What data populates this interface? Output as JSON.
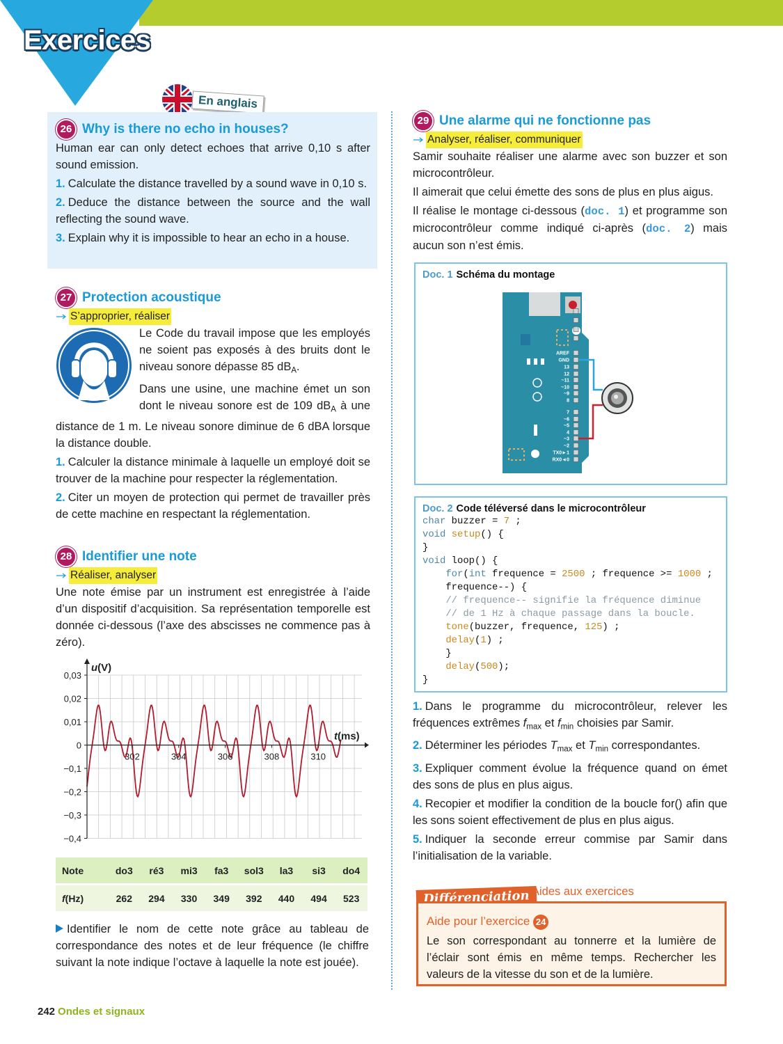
{
  "header": {
    "title": "Exercices",
    "badge": "En anglais"
  },
  "ex26": {
    "number": "26",
    "title": "Why is there no echo in houses?",
    "paragraphs": [
      [
        "Human ear can only detect echoes that arrive 0,10 s after sound emission."
      ],
      [
        {
          "num": "1."
        },
        "Calculate the distance travelled by a sound wave in 0,10 s."
      ],
      [
        {
          "num": "2."
        },
        "Deduce the distance between the source and the wall reflecting the sound wave."
      ],
      [
        {
          "num": "3."
        },
        "Explain why it is impossible to hear an echo in a house."
      ]
    ]
  },
  "ex27": {
    "number": "27",
    "title": "Protection acoustique",
    "skills": "S’approprier, réaliser",
    "paragraphs": [
      [
        "Le Code du travail impose que les employés ne soient pas exposés à des bruits dont le niveau sonore dépasse 85 dB",
        {
          "sub": "A"
        },
        "."
      ],
      [
        "Dans une usine, une machine émet un son dont le niveau sonore est de 109 dB",
        {
          "sub": "A"
        },
        " à une distance de 1 m. Le niveau sonore diminue de 6 dBA lorsque la distance double."
      ],
      [
        {
          "num": "1."
        },
        "Calculer la distance minimale à laquelle un employé doit se trouver de la machine pour respecter la réglementation."
      ],
      [
        {
          "num": "2."
        },
        "Citer un moyen de protection qui permet de travailler près de cette machine en respectant la réglementation."
      ]
    ]
  },
  "ex28": {
    "number": "28",
    "title": "Identifier une note",
    "skills": "Réaliser, analyser",
    "paragraphs": [
      [
        "Une note émise par un instrument est enregistrée à l’aide d’un dispositif d’acquisition. Sa représentation temporelle est donnée ci-dessous (l’axe des abscisses ne commence pas à zéro)."
      ]
    ],
    "graph": {
      "y_axis_label": [
        {
          "i": "u"
        },
        "(V)"
      ],
      "x_axis_label": [
        {
          "i": "t"
        },
        "(ms)"
      ],
      "yticks": [
        "0,03",
        "0,02",
        "0,01",
        "0",
        "−0,1",
        "−0,2",
        "−0,3",
        "−0,4"
      ],
      "xticks": [
        302,
        304,
        306,
        308,
        310
      ]
    },
    "table": {
      "rows": [
        {
          "label": [
            "Note"
          ],
          "cells": [
            "do3",
            "ré3",
            "mi3",
            "fa3",
            "sol3",
            "la3",
            "si3",
            "do4"
          ]
        },
        {
          "label": [
            {
              "i": "f"
            },
            "(Hz)"
          ],
          "cells": [
            262,
            294,
            330,
            349,
            392,
            440,
            494,
            523
          ]
        }
      ]
    },
    "closing": [
      [
        "Identifier le nom de cette note grâce au tableau de correspondance des notes et de leur fréquence (le chiffre suivant la note indique l’octave à laquelle la note est jouée)."
      ]
    ]
  },
  "ex29": {
    "number": "29",
    "title": "Une alarme qui ne fonctionne pas",
    "skills": "Analyser, réaliser, communiquer",
    "paragraphs": [
      [
        "Samir souhaite réaliser une alarme avec son buzzer et son microcontrôleur."
      ],
      [
        "Il aimerait que celui émette des sons de plus en plus aigus."
      ],
      [
        "Il réalise le montage ci-dessous (",
        {
          "ref": "doc. 1"
        },
        ") et programme son microcontrôleur comme indiqué ci-après (",
        {
          "ref": "doc. 2"
        },
        ") mais aucun son n’est émis."
      ]
    ],
    "doc1": {
      "label": "Doc. 1",
      "title": "Schéma du montage",
      "pins": [
        "AREF",
        "GND",
        "13",
        "12",
        "~11",
        "~10",
        "~9",
        "8",
        "7",
        "~6",
        "~5",
        "4",
        "~3",
        "~2",
        "TX0►1",
        "RX0◄0"
      ]
    },
    "doc2": {
      "label": "Doc. 2",
      "title": "Code téléversé dans le microcontrôleur",
      "code": [
        [
          {
            "kw": "char"
          },
          " buzzer = ",
          {
            "n": "7"
          },
          " ;"
        ],
        [
          {
            "kw": "void"
          },
          " ",
          {
            "fn": "setup"
          },
          "() {"
        ],
        [
          "}"
        ],
        [
          {
            "kw": "void"
          },
          " loop() {"
        ],
        [
          "    ",
          {
            "kw": "for"
          },
          "(",
          {
            "kw": "int"
          },
          " frequence = ",
          {
            "n": "2500"
          },
          " ; frequence >= ",
          {
            "n": "1000"
          },
          " ;"
        ],
        [
          "    frequence--) {"
        ],
        [
          "    ",
          {
            "cm": "// frequence-- signifie la fréquence diminue"
          }
        ],
        [
          "    ",
          {
            "cm": "// de 1 Hz à chaque passage dans la boucle."
          }
        ],
        [
          "    ",
          {
            "fn": "tone"
          },
          "(buzzer, frequence, ",
          {
            "n": "125"
          },
          ") ;"
        ],
        [
          "    ",
          {
            "fn": "delay"
          },
          "(",
          {
            "n": "1"
          },
          ") ;"
        ],
        [
          "    }"
        ],
        [
          "    ",
          {
            "fn": "delay"
          },
          "(",
          {
            "n": "500"
          },
          ");"
        ],
        [
          "}"
        ]
      ]
    },
    "questions": [
      [
        {
          "num": "1."
        },
        "Dans le programme du microcontrôleur, relever les fréquences extrêmes ",
        {
          "i": "f"
        },
        {
          "sub": "max"
        },
        " et ",
        {
          "i": "f"
        },
        {
          "sub": "min"
        },
        " choisies par Samir."
      ],
      [
        {
          "num": "2."
        },
        "Déterminer les périodes ",
        {
          "i": "T"
        },
        {
          "sub": "max"
        },
        " et ",
        {
          "i": "T"
        },
        {
          "sub": "min"
        },
        " correspondantes."
      ],
      [
        {
          "num": "3."
        },
        "Expliquer comment évolue la fréquence quand on émet des sons de plus en plus aigus."
      ],
      [
        {
          "num": "4."
        },
        "Recopier et modifier la condition de la boucle for() afin que les sons soient effectivement de plus en plus aigus."
      ],
      [
        {
          "num": "5."
        },
        "Indiquer la seconde erreur commise par Samir dans l’initialisation de la variable."
      ]
    ]
  },
  "differenciation": {
    "tab": "Différenciation",
    "subtitle": "Aides aux exercices",
    "title": "Aide pour l’exercice",
    "ref": "24",
    "text": "Le son correspondant au tonnerre et la lumière de l’éclair sont émis en même temps. Rechercher les valeurs de la vitesse du son et de la lumière."
  },
  "footer": {
    "page": "242",
    "section": "Ondes et signaux"
  }
}
